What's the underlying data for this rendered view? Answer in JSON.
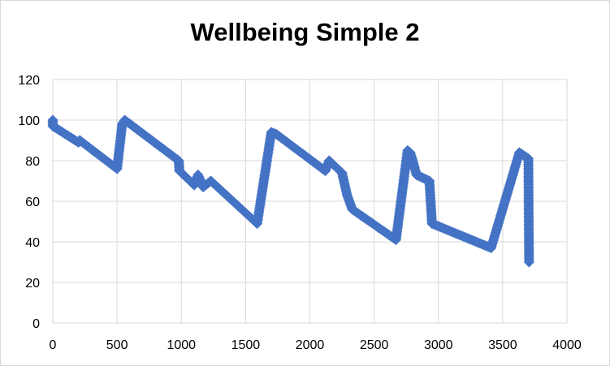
{
  "chart_data": {
    "type": "scatter",
    "title": "Wellbeing Simple 2",
    "xlabel": "",
    "ylabel": "",
    "xlim": [
      0,
      4000
    ],
    "ylim": [
      0,
      120
    ],
    "x_ticks": [
      0,
      500,
      1000,
      1500,
      2000,
      2500,
      3000,
      3500,
      4000
    ],
    "y_ticks": [
      0,
      20,
      40,
      60,
      80,
      100,
      120
    ],
    "grid": true,
    "legend": "none",
    "colors": {
      "series": "#4472c4",
      "grid": "#d9d9d9",
      "frame": "#d9d9d9"
    },
    "series": [
      {
        "marker": "diamond",
        "points": [
          [
            0,
            100
          ],
          [
            1,
            97
          ],
          [
            200,
            89
          ],
          [
            210,
            90
          ],
          [
            500,
            76
          ],
          [
            540,
            98
          ],
          [
            560,
            100
          ],
          [
            980,
            80
          ],
          [
            985,
            75
          ],
          [
            1100,
            68
          ],
          [
            1130,
            73
          ],
          [
            1170,
            67
          ],
          [
            1230,
            70
          ],
          [
            1590,
            49
          ],
          [
            1700,
            94
          ],
          [
            1740,
            93
          ],
          [
            2120,
            75
          ],
          [
            2150,
            80
          ],
          [
            2250,
            74
          ],
          [
            2290,
            63
          ],
          [
            2330,
            56
          ],
          [
            2670,
            41
          ],
          [
            2760,
            85
          ],
          [
            2780,
            84
          ],
          [
            2800,
            80
          ],
          [
            2830,
            73
          ],
          [
            2930,
            70
          ],
          [
            2950,
            49
          ],
          [
            3410,
            37
          ],
          [
            3630,
            84
          ],
          [
            3700,
            81
          ],
          [
            3705,
            30
          ]
        ]
      }
    ]
  }
}
